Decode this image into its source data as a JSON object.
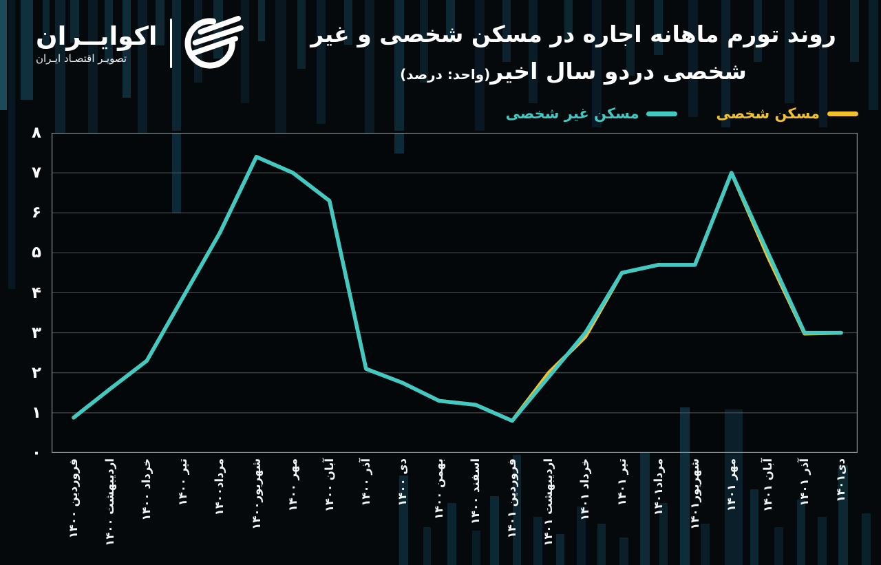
{
  "logo": {
    "brand": "اکوایــران",
    "tagline": "تصویـر اقتصـاد ایـران"
  },
  "title": {
    "line1": "روند تورم ماهانه اجاره در مسکن شخصی و غیر",
    "line2": "شخصی دردو سال اخیر",
    "unit": "(واحد: درصد)"
  },
  "legend": [
    {
      "label": "مسکن شخصی",
      "color": "#f2c22e"
    },
    {
      "label": "مسکن غیر شخصی",
      "color": "#41c9c3"
    }
  ],
  "chart_data": {
    "type": "line",
    "title": "روند تورم ماهانه اجاره در مسکن شخصی و غیر شخصی دردو سال اخیر",
    "unit": "(واحد: درصد)",
    "categories": [
      "فروردین ۱۴۰۰",
      "اردیبهشت ۱۴۰۰",
      "خرداد ۱۴۰۰",
      "تیر ۱۴۰۰",
      "مرداد۱۴۰۰",
      "شهریور۱۴۰۰",
      "مهر ۱۴۰۰",
      "آبان ۱۴۰۰",
      "آذر ۱۴۰۰",
      "دی ۱۴۰۰",
      "بهمن ۱۴۰۰",
      "اسفند ۱۴۰۰",
      "فروردین ۱۴۰۱",
      "اردیبهشت ۱۴۰۱",
      "خرداد ۱۴۰۱",
      "تیر ۱۴۰۱",
      "مرداد۱۴۰۱",
      "شهریور۱۴۰۱",
      "مهر ۱۴۰۱",
      "آبان ۱۴۰۱",
      "آذر ۱۴۰۱",
      "دی۱۴۰۱"
    ],
    "series": [
      {
        "name": "مسکن شخصی",
        "color": "#f2c22e",
        "values": [
          0.88,
          1.6,
          2.3,
          3.9,
          5.5,
          7.4,
          7.0,
          6.3,
          2.1,
          1.75,
          1.3,
          1.2,
          0.8,
          2.0,
          2.9,
          4.5,
          4.7,
          4.7,
          7.0,
          4.9,
          2.98,
          3.0
        ]
      },
      {
        "name": "مسکن غیر شخصی",
        "color": "#41c9c3",
        "values": [
          0.88,
          1.6,
          2.3,
          3.9,
          5.5,
          7.4,
          7.0,
          6.3,
          2.1,
          1.75,
          1.3,
          1.2,
          0.8,
          1.9,
          3.0,
          4.5,
          4.7,
          4.7,
          7.0,
          5.0,
          3.0,
          3.0
        ]
      }
    ],
    "ylim": [
      0,
      8
    ],
    "yticks": [
      0,
      1,
      2,
      3,
      4,
      5,
      6,
      7,
      8
    ],
    "ytick_labels": [
      "۰",
      "۱",
      "۲",
      "۳",
      "۴",
      "۵",
      "۶",
      "۷",
      "۸"
    ],
    "grid": true,
    "legend_position": "top-right",
    "x_label_rotation": -90
  }
}
